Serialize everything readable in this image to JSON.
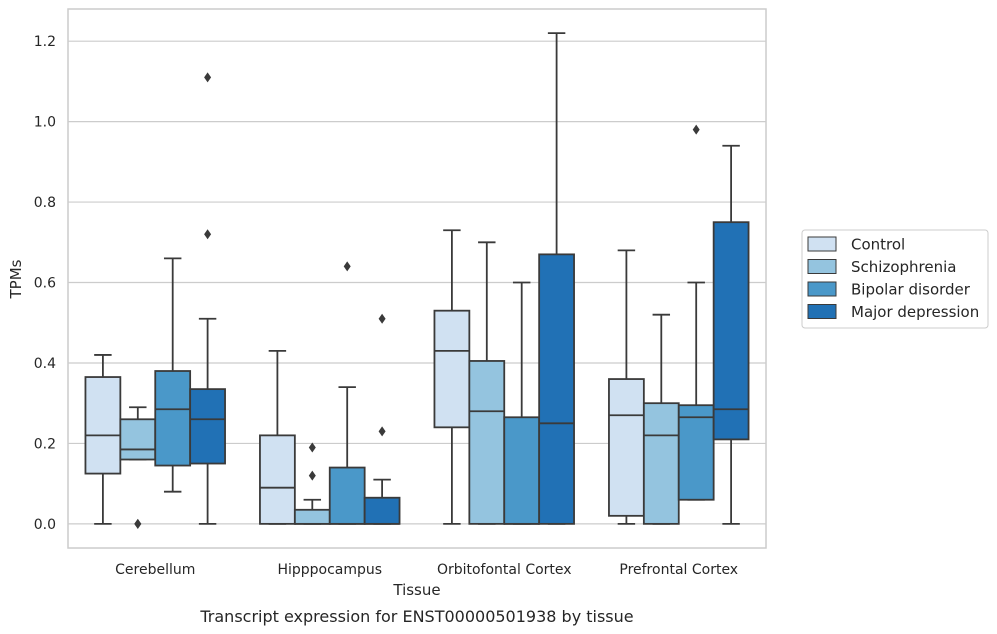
{
  "caption": "Transcript expression for ENST00000501938 by tissue",
  "chart_data": {
    "type": "box",
    "xlabel": "Tissue",
    "ylabel": "TPMs",
    "ylim": [
      -0.06,
      1.28
    ],
    "yticks": [
      "0.0",
      "0.2",
      "0.4",
      "0.6",
      "0.8",
      "1.0",
      "1.2"
    ],
    "ytick_values": [
      0.0,
      0.2,
      0.4,
      0.6,
      0.8,
      1.0,
      1.2
    ],
    "grid": "horizontal",
    "legend_position": "right",
    "categories": [
      "Cerebellum",
      "Hipppocampus",
      "Orbitofontal Cortex",
      "Prefrontal Cortex"
    ],
    "series": [
      {
        "name": "Control",
        "color": "#d0e1f2",
        "boxes": [
          {
            "whislo": 0.0,
            "q1": 0.125,
            "med": 0.22,
            "q3": 0.365,
            "whishi": 0.42,
            "fliers": []
          },
          {
            "whislo": 0.0,
            "q1": 0.0,
            "med": 0.09,
            "q3": 0.22,
            "whishi": 0.43,
            "fliers": []
          },
          {
            "whislo": 0.0,
            "q1": 0.24,
            "med": 0.43,
            "q3": 0.53,
            "whishi": 0.73,
            "fliers": []
          },
          {
            "whislo": 0.0,
            "q1": 0.02,
            "med": 0.27,
            "q3": 0.36,
            "whishi": 0.68,
            "fliers": []
          }
        ]
      },
      {
        "name": "Schizophrenia",
        "color": "#94c4df",
        "boxes": [
          {
            "whislo": 0.16,
            "q1": 0.16,
            "med": 0.185,
            "q3": 0.26,
            "whishi": 0.29,
            "fliers": [
              0.0,
              0.0
            ]
          },
          {
            "whislo": 0.0,
            "q1": 0.0,
            "med": 0.0,
            "q3": 0.035,
            "whishi": 0.06,
            "fliers": [
              0.12,
              0.19
            ]
          },
          {
            "whislo": 0.0,
            "q1": 0.0,
            "med": 0.28,
            "q3": 0.405,
            "whishi": 0.7,
            "fliers": []
          },
          {
            "whislo": 0.0,
            "q1": 0.0,
            "med": 0.22,
            "q3": 0.3,
            "whishi": 0.52,
            "fliers": []
          }
        ]
      },
      {
        "name": "Bipolar disorder",
        "color": "#4a98c9",
        "boxes": [
          {
            "whislo": 0.08,
            "q1": 0.145,
            "med": 0.285,
            "q3": 0.38,
            "whishi": 0.66,
            "fliers": []
          },
          {
            "whislo": 0.0,
            "q1": 0.0,
            "med": 0.0,
            "q3": 0.14,
            "whishi": 0.34,
            "fliers": [
              0.64
            ]
          },
          {
            "whislo": 0.0,
            "q1": 0.0,
            "med": 0.0,
            "q3": 0.265,
            "whishi": 0.6,
            "fliers": []
          },
          {
            "whislo": 0.06,
            "q1": 0.06,
            "med": 0.265,
            "q3": 0.295,
            "whishi": 0.6,
            "fliers": [
              0.98
            ]
          }
        ]
      },
      {
        "name": "Major depression",
        "color": "#2171b5",
        "boxes": [
          {
            "whislo": 0.0,
            "q1": 0.15,
            "med": 0.26,
            "q3": 0.335,
            "whishi": 0.51,
            "fliers": [
              0.72,
              1.11
            ]
          },
          {
            "whislo": 0.0,
            "q1": 0.0,
            "med": 0.0,
            "q3": 0.065,
            "whishi": 0.11,
            "fliers": [
              0.23,
              0.51
            ]
          },
          {
            "whislo": 0.0,
            "q1": 0.0,
            "med": 0.25,
            "q3": 0.67,
            "whishi": 1.22,
            "fliers": []
          },
          {
            "whislo": 0.0,
            "q1": 0.21,
            "med": 0.285,
            "q3": 0.75,
            "whishi": 0.94,
            "fliers": []
          }
        ]
      }
    ]
  }
}
